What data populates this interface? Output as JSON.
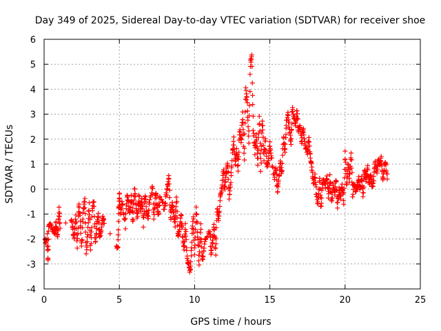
{
  "chart_data": {
    "type": "scatter",
    "title": "Day 349 of 2025, Sidereal Day-to-day VTEC variation (SDTVAR) for receiver shoe",
    "xlabel": "GPS time / hours",
    "ylabel": "SDTVAR / TECUs",
    "xlim": [
      0,
      25
    ],
    "ylim": [
      -4,
      6
    ],
    "xticks": [
      0,
      5,
      10,
      15,
      20,
      25
    ],
    "yticks": [
      -4,
      -3,
      -2,
      -1,
      0,
      1,
      2,
      3,
      4,
      5,
      6
    ],
    "grid": true,
    "marker": "+",
    "series": [
      {
        "name": "SDTVAR",
        "color": "#ff0000",
        "anchors": [
          [
            0.0,
            -2.0
          ],
          [
            0.1,
            -2.1
          ],
          [
            0.2,
            -1.9
          ],
          [
            0.25,
            -2.9
          ],
          [
            0.3,
            -1.5
          ],
          [
            0.45,
            -1.4
          ],
          [
            0.6,
            -1.6
          ],
          [
            0.7,
            -1.8
          ],
          [
            0.8,
            -1.3
          ],
          [
            0.9,
            -1.9
          ],
          [
            1.0,
            -0.8
          ],
          [
            1.05,
            -1.5
          ],
          [
            1.8,
            -1.2
          ],
          [
            1.9,
            -1.6
          ],
          [
            2.0,
            -2.0
          ],
          [
            2.1,
            -1.0
          ],
          [
            2.2,
            -2.3
          ],
          [
            2.3,
            -0.6
          ],
          [
            2.4,
            -1.2
          ],
          [
            2.5,
            -2.4
          ],
          [
            2.6,
            -0.9
          ],
          [
            2.7,
            -0.3
          ],
          [
            2.8,
            -2.6
          ],
          [
            2.9,
            -1.7
          ],
          [
            3.0,
            -0.6
          ],
          [
            3.1,
            -2.5
          ],
          [
            3.2,
            -0.9
          ],
          [
            3.3,
            -0.4
          ],
          [
            3.4,
            -2.2
          ],
          [
            3.5,
            -1.5
          ],
          [
            3.6,
            -1.0
          ],
          [
            3.7,
            -2.0
          ],
          [
            3.8,
            -1.6
          ],
          [
            3.9,
            -1.1
          ],
          [
            4.0,
            -1.4
          ],
          [
            4.8,
            -2.2
          ],
          [
            4.9,
            -2.35
          ],
          [
            4.95,
            -0.8
          ],
          [
            5.0,
            -0.15
          ],
          [
            5.1,
            -1.0
          ],
          [
            5.2,
            -0.5
          ],
          [
            5.4,
            -1.5
          ],
          [
            5.5,
            -0.3
          ],
          [
            5.6,
            -0.5
          ],
          [
            5.7,
            -1.0
          ],
          [
            5.8,
            -0.2
          ],
          [
            5.9,
            -1.4
          ],
          [
            6.0,
            0.0
          ],
          [
            6.1,
            -0.6
          ],
          [
            6.2,
            -1.2
          ],
          [
            6.3,
            -0.3
          ],
          [
            6.4,
            -0.9
          ],
          [
            6.5,
            -0.4
          ],
          [
            6.6,
            -1.4
          ],
          [
            6.7,
            -0.2
          ],
          [
            6.8,
            -0.8
          ],
          [
            6.9,
            -1.2
          ],
          [
            7.0,
            -0.5
          ],
          [
            7.2,
            0.15
          ],
          [
            7.3,
            -1.2
          ],
          [
            7.4,
            -0.1
          ],
          [
            7.5,
            -0.6
          ],
          [
            7.6,
            -1.0
          ],
          [
            7.7,
            -0.3
          ],
          [
            8.0,
            -0.8
          ],
          [
            8.1,
            -0.3
          ],
          [
            8.2,
            0.1
          ],
          [
            8.3,
            0.5
          ],
          [
            8.4,
            -1.2
          ],
          [
            8.5,
            -0.6
          ],
          [
            8.6,
            -0.9
          ],
          [
            8.7,
            -1.4
          ],
          [
            8.8,
            -0.3
          ],
          [
            8.9,
            -2.0
          ],
          [
            9.0,
            -1.6
          ],
          [
            9.1,
            -1.0
          ],
          [
            9.2,
            -1.8
          ],
          [
            9.3,
            -2.5
          ],
          [
            9.4,
            -1.4
          ],
          [
            9.5,
            -2.8
          ],
          [
            9.6,
            -3.0
          ],
          [
            9.7,
            -3.3
          ],
          [
            9.8,
            -2.3
          ],
          [
            9.9,
            -1.0
          ],
          [
            10.0,
            -2.5
          ],
          [
            10.1,
            -0.8
          ],
          [
            10.2,
            -1.8
          ],
          [
            10.3,
            -3.0
          ],
          [
            10.4,
            -1.5
          ],
          [
            10.5,
            -2.9
          ],
          [
            10.6,
            -2.6
          ],
          [
            10.7,
            -2.0
          ],
          [
            11.0,
            -1.6
          ],
          [
            11.1,
            -2.5
          ],
          [
            11.2,
            -2.1
          ],
          [
            11.3,
            -1.5
          ],
          [
            11.4,
            -2.6
          ],
          [
            11.5,
            -0.7
          ],
          [
            11.6,
            -1.3
          ],
          [
            11.7,
            -0.4
          ],
          [
            11.8,
            0.0
          ],
          [
            11.9,
            0.8
          ],
          [
            12.0,
            0.0
          ],
          [
            12.1,
            0.6
          ],
          [
            12.2,
            1.0
          ],
          [
            12.3,
            -0.3
          ],
          [
            12.4,
            0.3
          ],
          [
            12.5,
            1.4
          ],
          [
            12.6,
            2.0
          ],
          [
            12.7,
            1.0
          ],
          [
            12.8,
            1.5
          ],
          [
            12.9,
            0.8
          ],
          [
            13.0,
            2.4
          ],
          [
            13.1,
            1.9
          ],
          [
            13.2,
            3.0
          ],
          [
            13.3,
            1.2
          ],
          [
            13.4,
            4.0
          ],
          [
            13.5,
            3.5
          ],
          [
            13.6,
            1.9
          ],
          [
            13.7,
            5.0
          ],
          [
            13.8,
            5.35
          ],
          [
            13.9,
            2.4
          ],
          [
            14.0,
            1.5
          ],
          [
            14.1,
            2.2
          ],
          [
            14.2,
            1.0
          ],
          [
            14.3,
            2.9
          ],
          [
            14.4,
            0.8
          ],
          [
            14.5,
            2.8
          ],
          [
            14.6,
            1.2
          ],
          [
            14.7,
            2.0
          ],
          [
            14.8,
            0.9
          ],
          [
            14.9,
            1.1
          ],
          [
            15.0,
            1.8
          ],
          [
            15.1,
            1.3
          ],
          [
            15.3,
            0.4
          ],
          [
            15.4,
            0.9
          ],
          [
            15.5,
            -0.1
          ],
          [
            15.6,
            0.5
          ],
          [
            15.7,
            1.0
          ],
          [
            15.8,
            0.6
          ],
          [
            15.9,
            2.1
          ],
          [
            16.0,
            1.5
          ],
          [
            16.1,
            2.6
          ],
          [
            16.2,
            3.0
          ],
          [
            16.3,
            2.4
          ],
          [
            16.4,
            1.8
          ],
          [
            16.5,
            3.2
          ],
          [
            16.6,
            2.9
          ],
          [
            16.7,
            2.6
          ],
          [
            16.8,
            3.1
          ],
          [
            16.9,
            2.3
          ],
          [
            17.0,
            2.5
          ],
          [
            17.1,
            1.8
          ],
          [
            17.2,
            2.4
          ],
          [
            17.3,
            2.0
          ],
          [
            17.4,
            1.6
          ],
          [
            17.5,
            1.5
          ],
          [
            17.6,
            2.0
          ],
          [
            17.7,
            1.2
          ],
          [
            17.8,
            0.8
          ],
          [
            17.9,
            0.2
          ],
          [
            18.0,
            0.5
          ],
          [
            18.1,
            -0.2
          ],
          [
            18.2,
            -0.6
          ],
          [
            18.3,
            0.4
          ],
          [
            18.4,
            -0.8
          ],
          [
            18.5,
            0.2
          ],
          [
            18.6,
            0.4
          ],
          [
            18.7,
            0.1
          ],
          [
            18.8,
            0.5
          ],
          [
            18.9,
            -0.3
          ],
          [
            19.0,
            0.5
          ],
          [
            19.1,
            -0.6
          ],
          [
            19.2,
            0.1
          ],
          [
            19.3,
            -0.2
          ],
          [
            19.4,
            0.4
          ],
          [
            19.5,
            -0.7
          ],
          [
            19.6,
            0.0
          ],
          [
            19.7,
            -0.3
          ],
          [
            19.8,
            0.2
          ],
          [
            19.9,
            -0.5
          ],
          [
            20.0,
            1.4
          ],
          [
            20.1,
            0.1
          ],
          [
            20.2,
            1.0
          ],
          [
            20.3,
            0.3
          ],
          [
            20.4,
            1.5
          ],
          [
            20.5,
            -0.2
          ],
          [
            20.6,
            0.3
          ],
          [
            20.7,
            -0.1
          ],
          [
            20.8,
            0.1
          ],
          [
            20.9,
            0.4
          ],
          [
            21.0,
            0.0
          ],
          [
            21.1,
            0.5
          ],
          [
            21.2,
            -0.2
          ],
          [
            21.3,
            0.8
          ],
          [
            21.4,
            0.3
          ],
          [
            21.5,
            0.9
          ],
          [
            21.6,
            0.2
          ],
          [
            21.7,
            0.6
          ],
          [
            21.8,
            0.0
          ],
          [
            21.9,
            0.4
          ],
          [
            22.0,
            1.1
          ],
          [
            22.1,
            0.6
          ],
          [
            22.2,
            1.2
          ],
          [
            22.3,
            1.0
          ],
          [
            22.4,
            1.2
          ],
          [
            22.5,
            0.4
          ],
          [
            22.6,
            0.8
          ],
          [
            22.7,
            1.1
          ],
          [
            22.8,
            0.4
          ]
        ]
      }
    ]
  }
}
